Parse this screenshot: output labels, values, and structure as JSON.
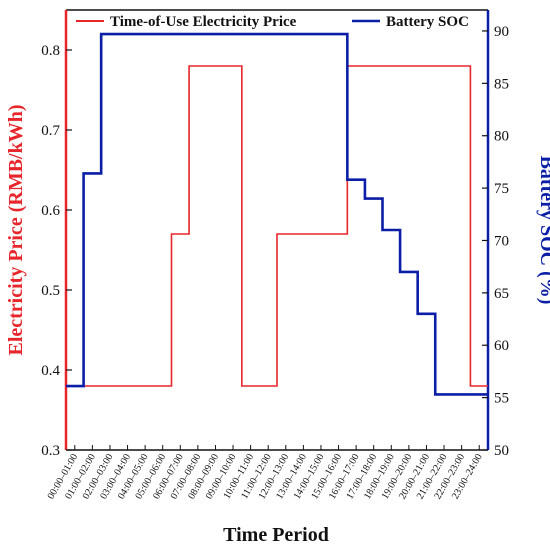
{
  "chart_data": {
    "type": "line",
    "xlabel": "Time Period",
    "ylabel_left": "Electricity Price (RMB/kWh)",
    "ylabel_right": "Battery SOC (%)",
    "ylim_left": [
      0.3,
      0.85
    ],
    "ylim_right": [
      50,
      92
    ],
    "yticks_left": [
      "0.3",
      "0.4",
      "0.5",
      "0.6",
      "0.7",
      "0.8"
    ],
    "yticks_right": [
      "50",
      "55",
      "60",
      "65",
      "70",
      "75",
      "80",
      "85",
      "90"
    ],
    "categories": [
      "00:00–01:00",
      "01:00–02:00",
      "02:00–03:00",
      "03:00–04:00",
      "04:00–05:00",
      "05:00–06:00",
      "06:00–07:00",
      "07:00–08:00",
      "08:00–09:00",
      "09:00–10:00",
      "10:00–11:00",
      "11:00–12:00",
      "12:00–13:00",
      "13:00–14:00",
      "14:00–15:00",
      "15:00–16:00",
      "16:00–17:00",
      "17:00–18:00",
      "18:00–19:00",
      "19:00–20:00",
      "20:00–21:00",
      "21:00–22:00",
      "22:00–23:00",
      "23:00–24:00"
    ],
    "grid": false,
    "legend_placement": "top",
    "series": [
      {
        "name": "Time-of-Use Electricity Price",
        "axis": "left",
        "color": "#e8252b",
        "step": true,
        "values": [
          0.38,
          0.38,
          0.38,
          0.38,
          0.38,
          0.38,
          0.57,
          0.78,
          0.78,
          0.78,
          0.38,
          0.38,
          0.57,
          0.57,
          0.57,
          0.57,
          0.78,
          0.78,
          0.78,
          0.78,
          0.78,
          0.78,
          0.78,
          0.38
        ]
      },
      {
        "name": "Battery SOC",
        "axis": "right",
        "color": "#0b1fa6",
        "step": true,
        "values": [
          56.1,
          76.4,
          89.7,
          89.7,
          89.7,
          89.7,
          89.7,
          89.7,
          89.7,
          89.7,
          89.7,
          89.7,
          89.7,
          89.7,
          89.7,
          89.7,
          75.8,
          74.0,
          71.0,
          67.0,
          63.0,
          55.3,
          55.3,
          55.3
        ]
      }
    ],
    "axis_colors": {
      "left": "#e8252b",
      "right": "#0b1fa6",
      "frame": "#111111"
    }
  }
}
